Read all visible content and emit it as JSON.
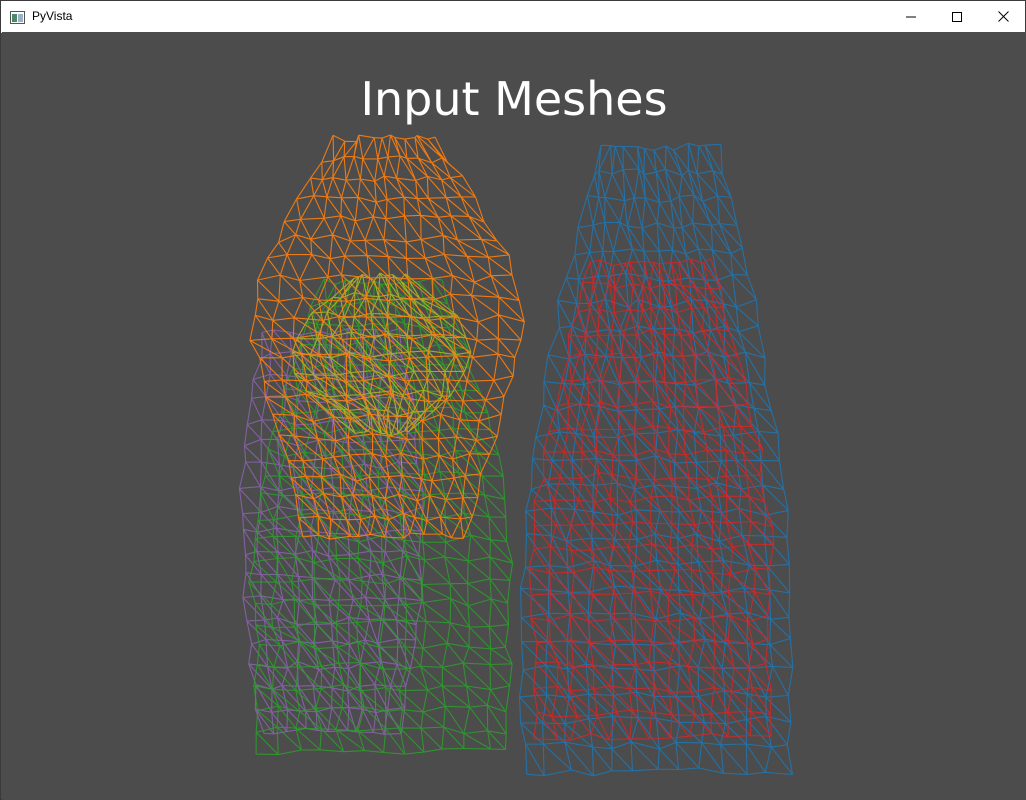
{
  "window": {
    "title": "PyVista",
    "icon": "pyvista-app-icon",
    "controls": {
      "minimize": "minimize-icon",
      "maximize": "maximize-icon",
      "close": "close-icon"
    }
  },
  "viewport": {
    "background": "#4c4c4c",
    "title": "Input Meshes"
  },
  "meshes": [
    {
      "name": "orange-mesh",
      "color": "#ff7f0e"
    },
    {
      "name": "olive-mesh",
      "color": "#bcbd22"
    },
    {
      "name": "green-mesh",
      "color": "#2ca02c"
    },
    {
      "name": "purple-mesh",
      "color": "#9467bd"
    },
    {
      "name": "blue-mesh",
      "color": "#1f77b4"
    },
    {
      "name": "red-mesh",
      "color": "#d62728"
    }
  ]
}
